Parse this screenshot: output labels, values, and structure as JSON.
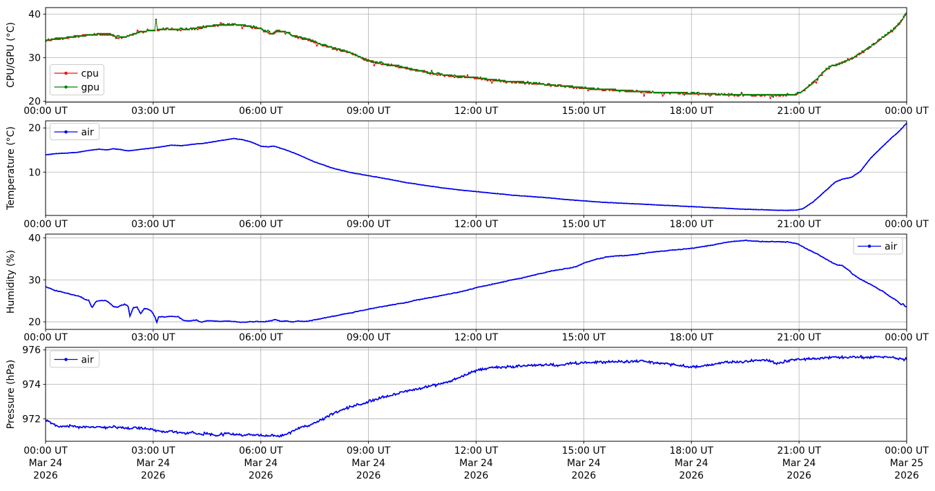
{
  "figure": {
    "bg_color": "#ffffff",
    "grid_color": "#b0b0b0",
    "spine_color": "#000000",
    "tick_label_color": "#000000",
    "x_tick_hours": [
      0,
      3,
      6,
      9,
      12,
      15,
      18,
      21,
      24
    ],
    "x_tick_labels": [
      "00:00 UT",
      "03:00 UT",
      "06:00 UT",
      "09:00 UT",
      "12:00 UT",
      "15:00 UT",
      "18:00 UT",
      "21:00 UT",
      "00:00 UT"
    ],
    "x_dates": [
      {
        "line1": "Mar 24",
        "line2": "2026"
      },
      {
        "line1": "Mar 24",
        "line2": "2026"
      },
      {
        "line1": "Mar 24",
        "line2": "2026"
      },
      {
        "line1": "Mar 24",
        "line2": "2026"
      },
      {
        "line1": "Mar 24",
        "line2": "2026"
      },
      {
        "line1": "Mar 24",
        "line2": "2026"
      },
      {
        "line1": "Mar 24",
        "line2": "2026"
      },
      {
        "line1": "Mar 24",
        "line2": "2026"
      },
      {
        "line1": "Mar 25",
        "line2": "2026"
      }
    ]
  },
  "chart_data": [
    {
      "id": "cpu-gpu",
      "type": "line",
      "title": "",
      "ylabel": "CPU/GPU (°C)",
      "yticks": [
        20,
        30,
        40
      ],
      "ylim": [
        19.8,
        41.5
      ],
      "xlim_hours": [
        0,
        24
      ],
      "grid": true,
      "legend": {
        "loc": "center left",
        "entries": [
          {
            "label": "cpu",
            "color": "#ee1111"
          },
          {
            "label": "gpu",
            "color": "#008000"
          }
        ]
      },
      "series": [
        {
          "name": "cpu",
          "color": "#ee1111",
          "style": "scatter",
          "noise": 0.22,
          "outlier": 0.85,
          "x": [
            0,
            0.3,
            0.6,
            0.9,
            1.2,
            1.5,
            1.8,
            2.0,
            2.2,
            2.45,
            2.7,
            2.9,
            3.0,
            3.05,
            3.08,
            3.12,
            3.3,
            3.6,
            3.9,
            4.2,
            4.5,
            4.8,
            5.1,
            5.4,
            5.7,
            6.0,
            6.3,
            6.5,
            6.7,
            6.9,
            7.1,
            7.4,
            7.7,
            8.0,
            8.3,
            8.6,
            9.0,
            9.4,
            9.8,
            10.2,
            10.6,
            11.0,
            11.5,
            12.0,
            12.5,
            13.0,
            13.5,
            14.0,
            14.5,
            15.0,
            15.5,
            16.0,
            16.5,
            17.0,
            17.5,
            18.0,
            18.5,
            19.0,
            19.5,
            20.0,
            20.5,
            20.9,
            21.1,
            21.3,
            21.5,
            21.7,
            21.9,
            22.1,
            22.35,
            22.6,
            23.0,
            23.3,
            23.6,
            23.85,
            24.0
          ],
          "values": [
            33.9,
            34.2,
            34.6,
            34.9,
            35.2,
            35.4,
            35.3,
            34.7,
            34.7,
            35.3,
            35.9,
            36.1,
            36.2,
            36.3,
            39.0,
            36.3,
            36.5,
            36.5,
            36.5,
            36.7,
            37.1,
            37.4,
            37.6,
            37.5,
            37.1,
            36.6,
            35.5,
            36.1,
            35.8,
            35.0,
            34.6,
            33.9,
            32.9,
            32.2,
            31.6,
            30.7,
            29.3,
            28.6,
            28.0,
            27.3,
            26.7,
            26.1,
            25.6,
            25.3,
            24.8,
            24.4,
            24.2,
            23.8,
            23.4,
            23.0,
            22.7,
            22.5,
            22.2,
            22.0,
            21.9,
            21.8,
            21.6,
            21.5,
            21.4,
            21.4,
            21.4,
            21.5,
            22.3,
            23.6,
            25.0,
            26.8,
            28.1,
            28.5,
            29.2,
            30.4,
            32.5,
            34.4,
            36.2,
            38.3,
            40.2
          ]
        },
        {
          "name": "gpu",
          "color": "#008000",
          "style": "scatter",
          "noise": 0.15,
          "outlier": 0.45,
          "x": [
            0,
            0.3,
            0.6,
            0.9,
            1.2,
            1.5,
            1.8,
            2.0,
            2.2,
            2.45,
            2.7,
            2.9,
            3.0,
            3.05,
            3.08,
            3.12,
            3.3,
            3.6,
            3.9,
            4.2,
            4.5,
            4.8,
            5.1,
            5.4,
            5.7,
            6.0,
            6.3,
            6.5,
            6.7,
            6.9,
            7.1,
            7.4,
            7.7,
            8.0,
            8.3,
            8.6,
            9.0,
            9.4,
            9.8,
            10.2,
            10.6,
            11.0,
            11.5,
            12.0,
            12.5,
            13.0,
            13.5,
            14.0,
            14.5,
            15.0,
            15.5,
            16.0,
            16.5,
            17.0,
            17.5,
            18.0,
            18.5,
            19.0,
            19.5,
            20.0,
            20.5,
            20.9,
            21.1,
            21.3,
            21.5,
            21.7,
            21.9,
            22.1,
            22.35,
            22.6,
            23.0,
            23.3,
            23.6,
            23.85,
            24.0
          ],
          "values": [
            34.0,
            34.3,
            34.7,
            35.0,
            35.3,
            35.5,
            35.4,
            34.8,
            34.8,
            35.4,
            36.0,
            36.2,
            36.3,
            36.4,
            38.7,
            36.4,
            36.6,
            36.6,
            36.6,
            36.8,
            37.2,
            37.5,
            37.7,
            37.6,
            37.2,
            36.7,
            35.6,
            36.2,
            35.9,
            35.1,
            34.7,
            34.0,
            33.0,
            32.3,
            31.7,
            30.8,
            29.4,
            28.7,
            28.1,
            27.4,
            26.8,
            26.2,
            25.7,
            25.4,
            24.9,
            24.5,
            24.3,
            23.9,
            23.5,
            23.1,
            22.8,
            22.6,
            22.3,
            22.1,
            22.0,
            21.9,
            21.7,
            21.6,
            21.5,
            21.5,
            21.5,
            21.6,
            22.4,
            23.7,
            25.1,
            26.9,
            28.2,
            28.6,
            29.3,
            30.5,
            32.6,
            34.5,
            36.3,
            38.4,
            40.3
          ]
        }
      ]
    },
    {
      "id": "temperature",
      "type": "line",
      "title": "",
      "ylabel": "Temperature (°C)",
      "yticks": [
        10,
        20
      ],
      "ylim": [
        0.2,
        21.6
      ],
      "xlim_hours": [
        0,
        24
      ],
      "grid": true,
      "legend": {
        "loc": "upper left",
        "entries": [
          {
            "label": "air",
            "color": "#0000ee"
          }
        ]
      },
      "series": [
        {
          "name": "air",
          "color": "#0000ee",
          "style": "thickline",
          "noise": 0.05,
          "outlier": 0,
          "x": [
            0,
            0.3,
            0.6,
            0.9,
            1.2,
            1.5,
            1.7,
            1.9,
            2.1,
            2.3,
            2.6,
            2.9,
            3.2,
            3.5,
            3.8,
            4.1,
            4.4,
            4.7,
            5.0,
            5.25,
            5.5,
            5.7,
            6.0,
            6.2,
            6.35,
            6.6,
            7.0,
            7.5,
            8.0,
            8.5,
            9.0,
            9.5,
            10.0,
            10.5,
            11.0,
            11.5,
            12.0,
            12.5,
            13.0,
            13.5,
            14.0,
            14.5,
            15.0,
            15.5,
            16.0,
            16.5,
            17.0,
            17.5,
            18.0,
            18.5,
            19.0,
            19.5,
            20.0,
            20.3,
            20.6,
            20.9,
            21.1,
            21.4,
            21.7,
            22.0,
            22.2,
            22.45,
            22.7,
            23.0,
            23.3,
            23.6,
            23.8,
            24.0
          ],
          "values": [
            13.9,
            14.2,
            14.3,
            14.5,
            14.9,
            15.2,
            15.0,
            15.3,
            15.1,
            14.8,
            15.1,
            15.4,
            15.7,
            16.1,
            16.0,
            16.3,
            16.5,
            16.9,
            17.3,
            17.6,
            17.3,
            16.9,
            15.9,
            15.7,
            15.9,
            15.3,
            14.1,
            12.3,
            10.9,
            9.9,
            9.2,
            8.5,
            7.7,
            7.1,
            6.5,
            6.0,
            5.6,
            5.2,
            4.8,
            4.5,
            4.2,
            3.8,
            3.5,
            3.2,
            3.0,
            2.8,
            2.6,
            2.4,
            2.2,
            2.0,
            1.8,
            1.6,
            1.5,
            1.4,
            1.35,
            1.4,
            1.7,
            3.3,
            5.5,
            7.7,
            8.4,
            8.8,
            10.1,
            13.2,
            15.6,
            17.9,
            19.3,
            21.1
          ]
        }
      ]
    },
    {
      "id": "humidity",
      "type": "line",
      "title": "",
      "ylabel": "Humidity (%)",
      "yticks": [
        20,
        30,
        40
      ],
      "ylim": [
        18.2,
        40.9
      ],
      "xlim_hours": [
        0,
        24
      ],
      "grid": true,
      "legend": {
        "loc": "upper right",
        "entries": [
          {
            "label": "air",
            "color": "#0000ee"
          }
        ]
      },
      "series": [
        {
          "name": "air",
          "color": "#0000ee",
          "style": "thickline",
          "noise": 0.1,
          "outlier": 0,
          "x": [
            0,
            0.25,
            0.5,
            0.75,
            1.0,
            1.1,
            1.2,
            1.3,
            1.4,
            1.55,
            1.7,
            1.8,
            1.9,
            2.0,
            2.1,
            2.2,
            2.3,
            2.35,
            2.45,
            2.55,
            2.65,
            2.75,
            2.85,
            2.95,
            3.05,
            3.1,
            3.15,
            3.3,
            3.5,
            3.7,
            3.85,
            4.0,
            4.2,
            4.35,
            4.5,
            4.7,
            4.9,
            5.1,
            5.3,
            5.5,
            5.7,
            5.9,
            6.1,
            6.3,
            6.4,
            6.55,
            6.7,
            6.9,
            7.1,
            7.3,
            7.5,
            7.7,
            8.0,
            8.3,
            8.6,
            9.0,
            9.3,
            9.6,
            10.0,
            10.3,
            10.6,
            11.0,
            11.3,
            11.6,
            12.0,
            12.3,
            12.6,
            13.0,
            13.3,
            13.6,
            14.0,
            14.3,
            14.6,
            14.8,
            15.0,
            15.3,
            15.6,
            15.9,
            16.2,
            16.5,
            17.0,
            17.5,
            18.0,
            18.3,
            18.6,
            19.0,
            19.3,
            19.5,
            19.8,
            20.1,
            20.4,
            20.7,
            20.9,
            21.0,
            21.2,
            21.4,
            21.5,
            21.7,
            21.9,
            22.0,
            22.1,
            22.2,
            22.4,
            22.5,
            22.7,
            23.0,
            23.2,
            23.4,
            23.5,
            23.7,
            23.8,
            23.85,
            23.9,
            23.95,
            24.0
          ],
          "values": [
            28.4,
            27.5,
            27.0,
            26.5,
            25.9,
            25.3,
            25.1,
            23.4,
            24.8,
            25.1,
            25.0,
            24.4,
            23.6,
            23.5,
            23.9,
            24.2,
            23.7,
            21.3,
            23.4,
            23.5,
            21.9,
            23.2,
            23.0,
            22.6,
            21.1,
            19.8,
            21.2,
            21.2,
            21.3,
            21.2,
            20.3,
            20.2,
            20.4,
            19.9,
            20.3,
            20.2,
            20.1,
            20.2,
            20.0,
            19.9,
            20.0,
            20.1,
            20.0,
            20.3,
            20.6,
            20.1,
            20.2,
            20.0,
            20.2,
            20.1,
            20.5,
            20.8,
            21.3,
            21.8,
            22.3,
            23.0,
            23.5,
            24.0,
            24.5,
            25.1,
            25.6,
            26.2,
            26.7,
            27.2,
            28.1,
            28.7,
            29.2,
            30.0,
            30.5,
            31.1,
            31.9,
            32.4,
            32.8,
            33.2,
            34.0,
            34.8,
            35.4,
            35.7,
            35.8,
            36.1,
            36.7,
            37.1,
            37.5,
            37.9,
            38.3,
            39.0,
            39.3,
            39.4,
            39.2,
            39.1,
            39.1,
            39.0,
            38.7,
            38.4,
            37.4,
            36.6,
            36.2,
            35.2,
            34.2,
            33.8,
            33.5,
            33.4,
            32.2,
            31.3,
            30.2,
            28.9,
            27.9,
            26.9,
            26.2,
            25.2,
            24.5,
            24.2,
            24.3,
            23.8,
            23.6
          ]
        }
      ]
    },
    {
      "id": "pressure",
      "type": "line",
      "title": "",
      "ylabel": "Pressure (hPa)",
      "yticks": [
        972,
        974,
        976
      ],
      "ylim": [
        970.7,
        976.15
      ],
      "xlim_hours": [
        0,
        24
      ],
      "grid": true,
      "legend": {
        "loc": "upper left",
        "entries": [
          {
            "label": "air",
            "color": "#0000ee"
          }
        ]
      },
      "series": [
        {
          "name": "air",
          "color": "#0000ee",
          "style": "thickline",
          "noise": 0.09,
          "outlier": 0,
          "x": [
            0,
            0.15,
            0.3,
            0.5,
            0.7,
            0.9,
            1.1,
            1.3,
            1.5,
            1.7,
            1.9,
            2.1,
            2.3,
            2.5,
            2.7,
            2.9,
            3.1,
            3.3,
            3.5,
            3.7,
            3.9,
            4.1,
            4.3,
            4.5,
            4.7,
            4.9,
            5.1,
            5.3,
            5.5,
            5.7,
            5.9,
            6.1,
            6.3,
            6.5,
            6.7,
            6.9,
            7.1,
            7.3,
            7.5,
            7.7,
            8.0,
            8.3,
            8.6,
            8.8,
            9.0,
            9.2,
            9.5,
            9.8,
            10.0,
            10.3,
            10.6,
            11.0,
            11.3,
            11.6,
            11.8,
            12.0,
            12.2,
            12.5,
            12.8,
            13.1,
            13.4,
            13.7,
            14.0,
            14.3,
            14.6,
            15.0,
            15.3,
            15.6,
            16.0,
            16.3,
            16.6,
            17.0,
            17.3,
            17.6,
            18.0,
            18.3,
            18.5,
            18.7,
            19.0,
            19.3,
            19.6,
            20.0,
            20.2,
            20.4,
            20.6,
            20.8,
            21.0,
            21.3,
            21.6,
            22.0,
            22.3,
            22.6,
            23.0,
            23.3,
            23.6,
            23.8,
            24.0
          ],
          "values": [
            971.95,
            971.8,
            971.6,
            971.55,
            971.6,
            971.5,
            971.55,
            971.5,
            971.55,
            971.5,
            971.55,
            971.5,
            971.45,
            971.5,
            971.45,
            971.4,
            971.3,
            971.25,
            971.3,
            971.2,
            971.15,
            971.2,
            971.1,
            971.15,
            971.05,
            971.1,
            971.15,
            971.1,
            971.05,
            971.1,
            971.05,
            971.0,
            971.05,
            971.0,
            971.1,
            971.3,
            971.5,
            971.6,
            971.75,
            971.95,
            972.3,
            972.55,
            972.75,
            972.85,
            973.0,
            973.15,
            973.3,
            973.45,
            973.6,
            973.7,
            973.85,
            974.0,
            974.2,
            974.45,
            974.65,
            974.8,
            974.9,
            975.0,
            975.0,
            975.05,
            975.1,
            975.1,
            975.15,
            975.1,
            975.2,
            975.25,
            975.3,
            975.3,
            975.35,
            975.3,
            975.35,
            975.25,
            975.2,
            975.1,
            975.0,
            975.05,
            975.15,
            975.2,
            975.3,
            975.3,
            975.35,
            975.4,
            975.35,
            975.2,
            975.35,
            975.4,
            975.45,
            975.5,
            975.5,
            975.6,
            975.55,
            975.6,
            975.55,
            975.6,
            975.55,
            975.5,
            975.45
          ]
        }
      ]
    }
  ]
}
